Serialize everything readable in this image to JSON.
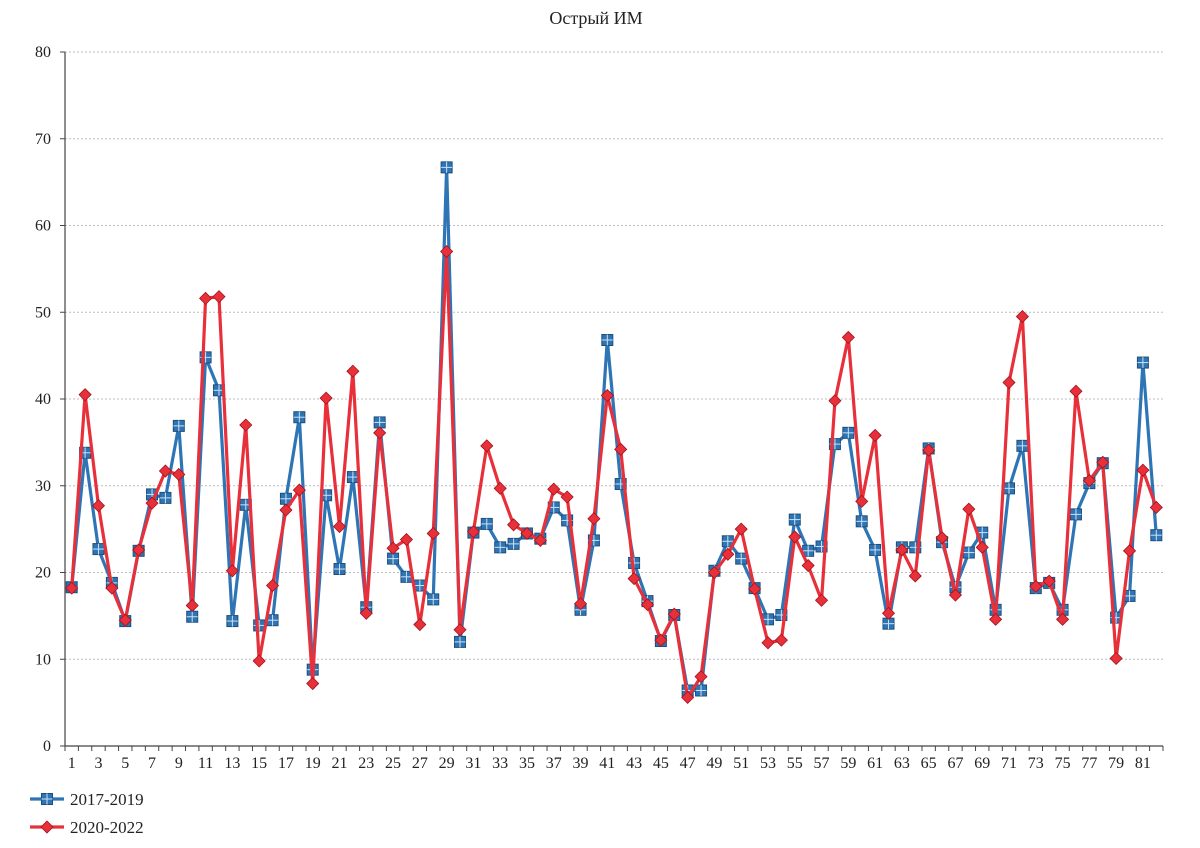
{
  "chart_data": {
    "type": "line",
    "title": "Острый ИМ",
    "xlabel": "",
    "ylabel": "",
    "ylim": [
      0,
      80
    ],
    "yticks": [
      0,
      10,
      20,
      30,
      40,
      50,
      60,
      70,
      80
    ],
    "x": [
      1,
      2,
      3,
      4,
      5,
      6,
      7,
      8,
      9,
      10,
      11,
      12,
      13,
      14,
      15,
      16,
      17,
      18,
      19,
      20,
      21,
      22,
      23,
      24,
      25,
      26,
      27,
      28,
      29,
      30,
      31,
      32,
      33,
      34,
      35,
      36,
      37,
      38,
      39,
      40,
      41,
      42,
      43,
      44,
      45,
      46,
      47,
      48,
      49,
      50,
      51,
      52,
      53,
      54,
      55,
      56,
      57,
      58,
      59,
      60,
      61,
      62,
      63,
      64,
      65,
      66,
      67,
      68,
      69,
      70,
      71,
      72,
      73,
      74,
      75,
      76,
      77,
      78,
      79,
      80,
      81,
      82
    ],
    "xtick_labels": [
      "1",
      "3",
      "5",
      "7",
      "9",
      "11",
      "13",
      "15",
      "17",
      "19",
      "21",
      "23",
      "25",
      "27",
      "29",
      "31",
      "33",
      "35",
      "37",
      "39",
      "41",
      "43",
      "45",
      "47",
      "49",
      "51",
      "53",
      "55",
      "57",
      "59",
      "61",
      "63",
      "65",
      "67",
      "69",
      "71",
      "73",
      "75",
      "77",
      "79",
      "81"
    ],
    "grid": true,
    "legend_position": "bottom-left",
    "series": [
      {
        "name": "2017-2019",
        "color": "#2e75b6",
        "marker": "square",
        "values": [
          18.3,
          33.8,
          22.7,
          18.8,
          14.4,
          22.5,
          29.0,
          28.6,
          36.9,
          14.9,
          44.8,
          41.0,
          14.4,
          27.8,
          13.9,
          14.5,
          28.5,
          37.9,
          8.8,
          28.9,
          20.4,
          31.0,
          16.0,
          37.3,
          21.6,
          19.5,
          18.5,
          16.9,
          66.7,
          12.0,
          24.6,
          25.6,
          22.9,
          23.3,
          24.5,
          23.9,
          27.5,
          26.0,
          15.7,
          23.7,
          46.8,
          30.2,
          21.1,
          16.7,
          12.1,
          15.1,
          6.4,
          6.4,
          20.2,
          23.6,
          21.6,
          18.2,
          14.6,
          15.1,
          26.1,
          22.5,
          23.0,
          34.8,
          36.1,
          25.9,
          22.6,
          14.1,
          22.9,
          22.9,
          34.3,
          23.5,
          18.3,
          22.3,
          24.6,
          15.7,
          29.7,
          34.6,
          18.2,
          18.8,
          15.7,
          26.7,
          30.3,
          32.6,
          14.8,
          17.3,
          44.2,
          24.3
        ]
      },
      {
        "name": "2020-2022",
        "color": "#e8303a",
        "marker": "diamond",
        "values": [
          18.2,
          40.5,
          27.7,
          18.2,
          14.5,
          22.6,
          28.0,
          31.7,
          31.3,
          16.2,
          51.6,
          51.8,
          20.2,
          37.0,
          9.8,
          18.5,
          27.2,
          29.5,
          7.2,
          40.1,
          25.3,
          43.2,
          15.3,
          36.1,
          22.8,
          23.8,
          14.0,
          24.5,
          57.0,
          13.4,
          24.7,
          34.6,
          29.7,
          25.5,
          24.5,
          23.7,
          29.6,
          28.7,
          16.4,
          26.2,
          40.4,
          34.2,
          19.3,
          16.3,
          12.2,
          15.2,
          5.6,
          8.0,
          20.0,
          22.1,
          25.0,
          18.1,
          11.9,
          12.2,
          24.1,
          20.8,
          16.8,
          39.8,
          47.1,
          28.2,
          35.8,
          15.3,
          22.6,
          19.6,
          34.1,
          24.0,
          17.4,
          27.3,
          22.9,
          14.6,
          41.9,
          49.5,
          18.4,
          19.0,
          14.6,
          40.9,
          30.6,
          32.7,
          10.1,
          22.5,
          31.8,
          27.5
        ]
      }
    ]
  }
}
